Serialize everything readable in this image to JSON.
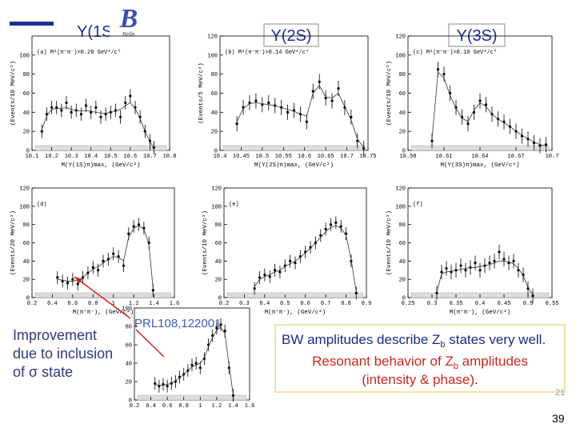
{
  "slide": {
    "titles": [
      "Υ(1S)",
      "Υ(2S)",
      "Υ(3S)"
    ],
    "logo": "Belle",
    "reference": "PRL108,122001",
    "improvement": [
      "Improvement",
      "due to inclusion",
      "of σ state"
    ],
    "box": {
      "line1": [
        "BW amplitudes describe Z",
        "b",
        " states very well."
      ],
      "line2": [
        "Resonant behavior of Z",
        "b",
        " amplitudes"
      ],
      "line3": "(intensity & phase)."
    },
    "page_ref": "21",
    "page_number": "39"
  },
  "chart_data": [
    {
      "type": "errorbar",
      "label": "(a) M²(π⁺π⁻)>0.20 GeV²/c⁴",
      "xlabel": "M(Υ(1S)π)max, (GeV/c²)",
      "ylabel": "(Events/10 MeV/c²)",
      "x": [
        10.15,
        10.175,
        10.2,
        10.225,
        10.25,
        10.275,
        10.3,
        10.325,
        10.35,
        10.375,
        10.4,
        10.425,
        10.45,
        10.475,
        10.5,
        10.525,
        10.55,
        10.575,
        10.6,
        10.625,
        10.65,
        10.675,
        10.7,
        10.72
      ],
      "series": [
        {
          "values": [
            20,
            38,
            45,
            45,
            42,
            50,
            40,
            42,
            38,
            47,
            40,
            45,
            35,
            38,
            40,
            42,
            35,
            50,
            57,
            45,
            35,
            20,
            10,
            3
          ],
          "error": 7,
          "color": "#000000"
        },
        {
          "values": [
            22,
            36,
            43,
            44,
            44,
            45,
            43,
            42,
            41,
            42,
            41,
            40,
            39,
            39,
            40,
            41,
            43,
            47,
            50,
            44,
            33,
            20,
            9,
            3
          ],
          "color": "#333333"
        }
      ],
      "xlim": [
        10.1,
        10.8
      ],
      "xticks": [
        10.1,
        10.2,
        10.3,
        10.4,
        10.5,
        10.6,
        10.7,
        10.8
      ],
      "ylim": [
        0,
        120
      ],
      "yticks": [
        0,
        20,
        40,
        60,
        80,
        100
      ]
    },
    {
      "type": "errorbar",
      "label": "(b) M²(π⁺π⁻)>0.14 GeV²/c⁴",
      "xlabel": "M(Υ(2S)π)max, (GeV/c²)",
      "ylabel": "(Events/5 MeV/c²)",
      "x": [
        10.44,
        10.455,
        10.47,
        10.485,
        10.5,
        10.515,
        10.53,
        10.545,
        10.56,
        10.575,
        10.59,
        10.605,
        10.62,
        10.635,
        10.65,
        10.665,
        10.68,
        10.695,
        10.71,
        10.725,
        10.74
      ],
      "series": [
        {
          "values": [
            28,
            45,
            50,
            52,
            48,
            50,
            47,
            45,
            40,
            42,
            38,
            30,
            62,
            72,
            55,
            52,
            65,
            45,
            35,
            10,
            2
          ],
          "error": 8,
          "color": "#000000"
        },
        {
          "values": [
            30,
            44,
            49,
            50,
            49,
            48,
            47,
            45,
            43,
            41,
            38,
            36,
            60,
            68,
            56,
            55,
            60,
            46,
            32,
            12,
            3
          ],
          "color": "#333333"
        }
      ],
      "xlim": [
        10.4,
        10.75
      ],
      "xticks": [
        10.4,
        10.45,
        10.5,
        10.55,
        10.6,
        10.65,
        10.7,
        10.75
      ],
      "ylim": [
        0,
        120
      ],
      "yticks": [
        0,
        20,
        40,
        60,
        80,
        100,
        120
      ]
    },
    {
      "type": "errorbar",
      "label": "(c) M²(π⁺π⁻)>0.10 GeV²/c⁴",
      "xlabel": "M(Υ(3S)π)max, (GeV/c²)",
      "ylabel": "(Events/10 MeV/c²)",
      "x": [
        10.6,
        10.605,
        10.61,
        10.615,
        10.62,
        10.625,
        10.63,
        10.635,
        10.64,
        10.645,
        10.65,
        10.655,
        10.66,
        10.665,
        10.67,
        10.675,
        10.68,
        10.685,
        10.69,
        10.695
      ],
      "series": [
        {
          "values": [
            10,
            85,
            80,
            60,
            45,
            35,
            28,
            40,
            52,
            48,
            38,
            33,
            30,
            25,
            20,
            15,
            12,
            8,
            5,
            6
          ],
          "error": 8,
          "color": "#000000"
        },
        {
          "values": [
            12,
            82,
            76,
            58,
            44,
            34,
            30,
            42,
            50,
            46,
            38,
            33,
            29,
            25,
            20,
            16,
            12,
            9,
            6,
            5
          ],
          "color": "#333333"
        }
      ],
      "xlim": [
        10.58,
        10.7
      ],
      "xticks": [
        10.58,
        10.61,
        10.64,
        10.67,
        10.7
      ],
      "ylim": [
        0,
        120
      ],
      "yticks": [
        0,
        20,
        40,
        60,
        80,
        100,
        120
      ]
    },
    {
      "type": "errorbar",
      "label": "(d)",
      "xlabel": "M(π⁺π⁻), (GeV/c²)",
      "ylabel": "(Events/20 MeV/c²)",
      "x": [
        0.45,
        0.5,
        0.55,
        0.6,
        0.65,
        0.7,
        0.75,
        0.8,
        0.85,
        0.9,
        0.95,
        1.0,
        1.05,
        1.1,
        1.15,
        1.2,
        1.25,
        1.3,
        1.35,
        1.39
      ],
      "series": [
        {
          "values": [
            22,
            18,
            16,
            20,
            15,
            22,
            27,
            33,
            30,
            40,
            42,
            48,
            45,
            35,
            70,
            78,
            80,
            76,
            60,
            8
          ],
          "error": 7,
          "color": "#000000"
        },
        {
          "values": [
            20,
            19,
            18,
            18,
            19,
            22,
            27,
            31,
            34,
            38,
            42,
            45,
            44,
            40,
            66,
            76,
            79,
            75,
            58,
            10
          ],
          "color": "#333333"
        }
      ],
      "xlim": [
        0.2,
        1.6
      ],
      "xticks": [
        0.2,
        0.4,
        0.6,
        0.8,
        1,
        1.2,
        1.4,
        1.6
      ],
      "ylim": [
        0,
        120
      ],
      "yticks": [
        0,
        20,
        40,
        60,
        80,
        100,
        120
      ]
    },
    {
      "type": "errorbar",
      "label": "(e)",
      "xlabel": "M(π⁺π⁻), (GeV/c²)",
      "ylabel": "(Events/10 MeV/c²)",
      "x": [
        0.35,
        0.375,
        0.4,
        0.425,
        0.45,
        0.475,
        0.5,
        0.525,
        0.55,
        0.575,
        0.6,
        0.625,
        0.65,
        0.675,
        0.7,
        0.725,
        0.75,
        0.775,
        0.8,
        0.825,
        0.85
      ],
      "series": [
        {
          "values": [
            10,
            22,
            25,
            23,
            30,
            28,
            35,
            40,
            38,
            45,
            50,
            55,
            60,
            68,
            75,
            80,
            82,
            78,
            70,
            40,
            5
          ],
          "error": 7,
          "color": "#000000"
        },
        {
          "values": [
            12,
            20,
            23,
            25,
            28,
            30,
            34,
            37,
            40,
            44,
            49,
            54,
            60,
            66,
            72,
            77,
            79,
            76,
            68,
            42,
            6
          ],
          "color": "#333333"
        }
      ],
      "xlim": [
        0.2,
        0.9
      ],
      "xticks": [
        0.2,
        0.3,
        0.4,
        0.5,
        0.6,
        0.7,
        0.8,
        0.9
      ],
      "ylim": [
        0,
        120
      ],
      "yticks": [
        0,
        20,
        40,
        60,
        80,
        100,
        120
      ]
    },
    {
      "type": "errorbar",
      "label": "(f)",
      "xlabel": "M(π⁺π⁻), (GeV/c²)",
      "ylabel": "(Events/10 MeV/c²)",
      "x": [
        0.31,
        0.32,
        0.33,
        0.34,
        0.35,
        0.36,
        0.37,
        0.38,
        0.39,
        0.4,
        0.41,
        0.42,
        0.43,
        0.44,
        0.45,
        0.46,
        0.47,
        0.48,
        0.49,
        0.5,
        0.51
      ],
      "series": [
        {
          "values": [
            5,
            28,
            32,
            28,
            30,
            35,
            30,
            33,
            38,
            30,
            35,
            38,
            40,
            50,
            42,
            38,
            40,
            30,
            25,
            10,
            2
          ],
          "error": 8,
          "color": "#000000"
        },
        {
          "values": [
            6,
            26,
            28,
            29,
            30,
            31,
            32,
            33,
            33,
            34,
            35,
            36,
            38,
            40,
            40,
            39,
            37,
            32,
            24,
            11,
            3
          ],
          "color": "#333333"
        }
      ],
      "xlim": [
        0.25,
        0.55
      ],
      "xticks": [
        0.25,
        0.3,
        0.35,
        0.4,
        0.45,
        0.5,
        0.55
      ],
      "ylim": [
        0,
        120
      ],
      "yticks": [
        0,
        20,
        40,
        60,
        80,
        100,
        120
      ]
    },
    {
      "type": "errorbar",
      "x": [
        0.45,
        0.5,
        0.55,
        0.6,
        0.65,
        0.7,
        0.75,
        0.8,
        0.85,
        0.9,
        0.95,
        1.0,
        1.05,
        1.1,
        1.15,
        1.2,
        1.25,
        1.3,
        1.35,
        1.4
      ],
      "series": [
        {
          "values": [
            18,
            15,
            17,
            15,
            18,
            20,
            25,
            28,
            32,
            38,
            40,
            35,
            45,
            60,
            70,
            78,
            82,
            75,
            35,
            5
          ],
          "error": 7,
          "color": "#000000"
        },
        {
          "values": [
            17,
            16,
            16,
            17,
            18,
            21,
            24,
            28,
            32,
            36,
            38,
            40,
            46,
            58,
            68,
            76,
            79,
            72,
            38,
            6
          ],
          "color": "#333333"
        }
      ],
      "xlim": [
        0.2,
        1.6
      ],
      "xticks": [
        0.2,
        0.4,
        0.6,
        0.8,
        1,
        1.2,
        1.4,
        1.6
      ],
      "ylim": [
        0,
        100
      ],
      "yticks": [
        0,
        20,
        40,
        60,
        80,
        100
      ]
    }
  ]
}
